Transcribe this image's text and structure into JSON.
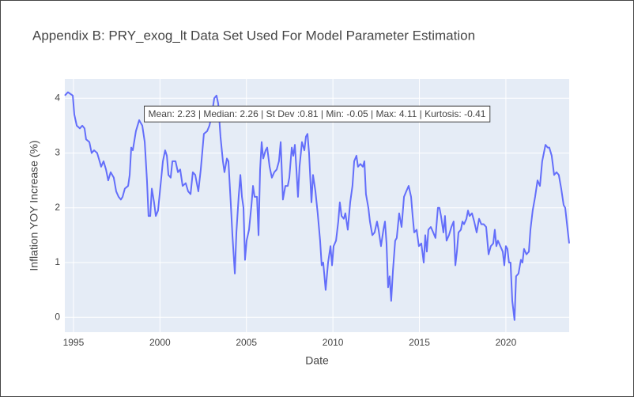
{
  "chart_data": {
    "type": "line",
    "title": "Appendix B: PRY_exog_lt Data Set Used For Model Parameter Estimation",
    "x_label": "Date",
    "y_label": "Inflation YOY Increase (%)",
    "annotation": "Mean: 2.23 | Median: 2.26 | St Dev :0.81 | Min: -0.05 | Max: 4.11 | Kurtosis: -0.41",
    "xlim": [
      1994.5,
      2023.66
    ],
    "xticks": [
      1995,
      2000,
      2005,
      2010,
      2015,
      2020
    ],
    "ylim": [
      -0.27,
      4.35
    ],
    "yticks": [
      0,
      1,
      2,
      3,
      4
    ],
    "grid": true,
    "series": [
      {
        "color": "#636efa",
        "x": [
          1994.5,
          1994.68,
          1994.96,
          1995.05,
          1995.19,
          1995.37,
          1995.51,
          1995.64,
          1995.73,
          1995.92,
          1996.05,
          1996.19,
          1996.37,
          1996.51,
          1996.6,
          1996.74,
          1996.88,
          1997.01,
          1997.15,
          1997.33,
          1997.47,
          1997.61,
          1997.74,
          1997.84,
          1997.97,
          1998.16,
          1998.25,
          1998.34,
          1998.43,
          1998.61,
          1998.8,
          1998.98,
          1999.12,
          1999.25,
          1999.34,
          1999.44,
          1999.53,
          1999.66,
          1999.76,
          1999.89,
          2000.03,
          2000.17,
          2000.3,
          2000.4,
          2000.49,
          2000.62,
          2000.72,
          2000.9,
          2001.04,
          2001.17,
          2001.31,
          2001.49,
          2001.63,
          2001.77,
          2001.9,
          2002.04,
          2002.22,
          2002.36,
          2002.54,
          2002.73,
          2002.86,
          2003.0,
          2003.14,
          2003.27,
          2003.37,
          2003.5,
          2003.64,
          2003.73,
          2003.87,
          2003.96,
          2004.1,
          2004.19,
          2004.33,
          2004.42,
          2004.55,
          2004.65,
          2004.74,
          2004.83,
          2004.92,
          2005.01,
          2005.15,
          2005.29,
          2005.38,
          2005.47,
          2005.61,
          2005.7,
          2005.79,
          2005.88,
          2005.97,
          2006.11,
          2006.2,
          2006.34,
          2006.47,
          2006.61,
          2006.75,
          2006.88,
          2006.98,
          2007.11,
          2007.25,
          2007.39,
          2007.48,
          2007.62,
          2007.71,
          2007.8,
          2007.89,
          2007.98,
          2008.07,
          2008.21,
          2008.35,
          2008.44,
          2008.53,
          2008.62,
          2008.76,
          2008.85,
          2008.99,
          2009.12,
          2009.26,
          2009.35,
          2009.44,
          2009.58,
          2009.72,
          2009.86,
          2009.95,
          2010.04,
          2010.18,
          2010.31,
          2010.4,
          2010.5,
          2010.63,
          2010.72,
          2010.86,
          2011.0,
          2011.13,
          2011.23,
          2011.36,
          2011.45,
          2011.59,
          2011.73,
          2011.82,
          2011.91,
          2012.05,
          2012.14,
          2012.28,
          2012.41,
          2012.55,
          2012.64,
          2012.78,
          2012.92,
          2013.01,
          2013.1,
          2013.19,
          2013.28,
          2013.37,
          2013.47,
          2013.6,
          2013.69,
          2013.83,
          2013.97,
          2014.11,
          2014.24,
          2014.38,
          2014.52,
          2014.61,
          2014.7,
          2014.84,
          2014.97,
          2015.11,
          2015.25,
          2015.34,
          2015.43,
          2015.52,
          2015.66,
          2015.8,
          2015.93,
          2016.07,
          2016.16,
          2016.25,
          2016.39,
          2016.48,
          2016.57,
          2016.71,
          2016.85,
          2016.98,
          2017.08,
          2017.17,
          2017.26,
          2017.4,
          2017.49,
          2017.58,
          2017.72,
          2017.81,
          2017.9,
          2018.04,
          2018.17,
          2018.31,
          2018.45,
          2018.58,
          2018.72,
          2018.86,
          2019.0,
          2019.13,
          2019.27,
          2019.36,
          2019.45,
          2019.54,
          2019.68,
          2019.82,
          2019.91,
          2020.0,
          2020.09,
          2020.18,
          2020.27,
          2020.37,
          2020.5,
          2020.59,
          2020.73,
          2020.87,
          2020.96,
          2021.05,
          2021.19,
          2021.33,
          2021.42,
          2021.55,
          2021.69,
          2021.83,
          2021.97,
          2022.1,
          2022.29,
          2022.42,
          2022.51,
          2022.65,
          2022.79,
          2022.93,
          2023.06,
          2023.2,
          2023.34,
          2023.43,
          2023.57,
          2023.66
        ],
        "values": [
          4.05,
          4.11,
          4.05,
          3.7,
          3.5,
          3.45,
          3.5,
          3.45,
          3.25,
          3.2,
          3.0,
          3.05,
          3.0,
          2.85,
          2.75,
          2.85,
          2.7,
          2.5,
          2.65,
          2.55,
          2.3,
          2.2,
          2.15,
          2.2,
          2.35,
          2.4,
          2.6,
          3.1,
          3.05,
          3.4,
          3.6,
          3.5,
          3.2,
          2.5,
          1.85,
          1.85,
          2.35,
          2.1,
          1.85,
          1.95,
          2.4,
          2.85,
          3.05,
          2.95,
          2.6,
          2.55,
          2.85,
          2.85,
          2.65,
          2.7,
          2.4,
          2.45,
          2.3,
          2.25,
          2.65,
          2.6,
          2.3,
          2.7,
          3.35,
          3.4,
          3.5,
          3.7,
          4.0,
          4.05,
          3.9,
          3.3,
          2.85,
          2.65,
          2.9,
          2.85,
          2.05,
          1.5,
          0.8,
          1.55,
          2.2,
          2.6,
          2.2,
          2.0,
          1.05,
          1.4,
          1.6,
          2.05,
          2.4,
          2.2,
          2.2,
          1.5,
          2.7,
          3.2,
          2.9,
          3.05,
          3.1,
          2.75,
          2.55,
          2.65,
          2.7,
          2.85,
          3.2,
          2.15,
          2.4,
          2.4,
          2.55,
          3.1,
          2.95,
          3.15,
          2.7,
          2.2,
          2.75,
          3.2,
          3.05,
          3.3,
          3.35,
          3.0,
          2.1,
          2.6,
          2.3,
          1.9,
          1.4,
          0.95,
          1.0,
          0.5,
          1.0,
          1.3,
          0.95,
          1.3,
          1.4,
          1.75,
          2.1,
          1.85,
          1.8,
          1.9,
          1.6,
          2.1,
          2.4,
          2.85,
          2.95,
          2.75,
          2.8,
          2.75,
          2.85,
          2.25,
          2.0,
          1.75,
          1.5,
          1.55,
          1.75,
          1.6,
          1.3,
          1.6,
          1.75,
          1.35,
          0.55,
          0.75,
          0.3,
          0.85,
          1.4,
          1.45,
          1.9,
          1.65,
          2.2,
          2.3,
          2.4,
          2.2,
          1.85,
          1.55,
          1.6,
          1.3,
          1.35,
          1.0,
          1.5,
          1.2,
          1.6,
          1.65,
          1.55,
          1.45,
          2.0,
          2.0,
          1.85,
          1.55,
          1.85,
          1.4,
          1.5,
          1.65,
          1.75,
          0.95,
          1.2,
          1.55,
          1.6,
          1.75,
          1.7,
          1.8,
          1.95,
          1.85,
          1.9,
          1.75,
          1.55,
          1.8,
          1.7,
          1.7,
          1.65,
          1.15,
          1.3,
          1.35,
          1.6,
          1.3,
          1.4,
          1.3,
          1.2,
          0.95,
          1.3,
          1.25,
          1.0,
          1.0,
          0.3,
          -0.05,
          0.75,
          0.8,
          1.05,
          1.0,
          1.25,
          1.15,
          1.2,
          1.6,
          1.95,
          2.2,
          2.5,
          2.4,
          2.85,
          3.15,
          3.1,
          3.1,
          2.95,
          2.6,
          2.65,
          2.6,
          2.35,
          2.05,
          2.0,
          1.6,
          1.35
        ]
      }
    ]
  }
}
